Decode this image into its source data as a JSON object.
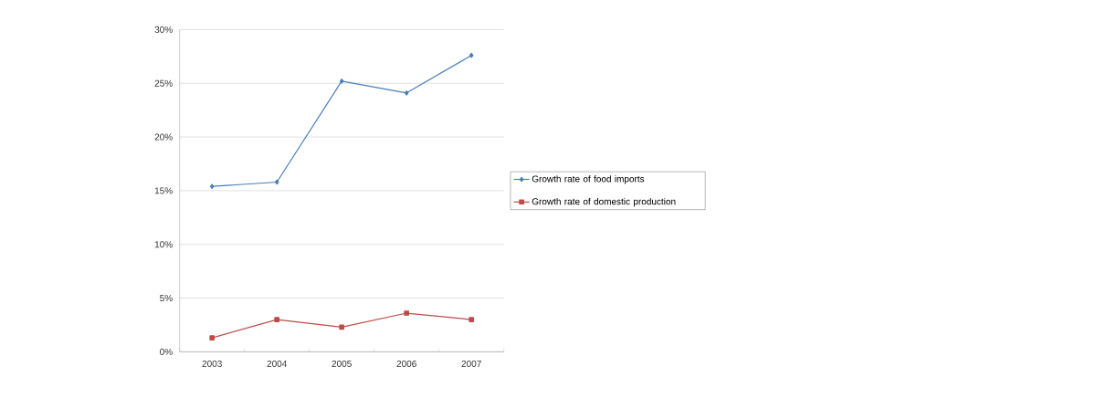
{
  "chart_data": {
    "type": "line",
    "categories": [
      "2003",
      "2004",
      "2005",
      "2006",
      "2007"
    ],
    "series": [
      {
        "name": "Growth rate of food imports",
        "color": "#4a7ebb",
        "marker": "diamond",
        "values": [
          15.4,
          15.8,
          25.2,
          24.1,
          27.6
        ]
      },
      {
        "name": "Growth rate of domestic production",
        "color": "#be4b48",
        "marker": "square",
        "values": [
          1.3,
          3.0,
          2.3,
          3.6,
          3.0
        ]
      }
    ],
    "ylim": [
      0,
      30
    ],
    "yticks": [
      {
        "value": 0,
        "label": "0%"
      },
      {
        "value": 5,
        "label": "5%"
      },
      {
        "value": 10,
        "label": "10%"
      },
      {
        "value": 15,
        "label": "15%"
      },
      {
        "value": 20,
        "label": "20%"
      },
      {
        "value": 25,
        "label": "25%"
      },
      {
        "value": 30,
        "label": "30%"
      }
    ],
    "grid": "y",
    "legend": "right"
  }
}
